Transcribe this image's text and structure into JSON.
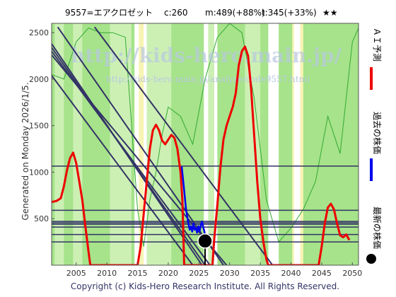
{
  "header": {
    "code_name": "9557=エアクロゼット",
    "current": "c:260",
    "max": "m:489(+88%)",
    "target": "t:345(+33%)",
    "stars": "★★"
  },
  "side_label": "Generated on Monday 2026/1/5.",
  "copyright": "Copyright (c) Kids-Hero Research Institute. All Rights Reserved.",
  "watermark": {
    "url": "http://kids-hero.main.jp/",
    "url_small": "http://kids-hero.main.jp/analyze/code9557.html"
  },
  "legend": {
    "ai": "ＡＩ予測",
    "past": "過去の株価",
    "latest": "最新の株価"
  },
  "colors": {
    "background_green": "#a6e38a",
    "light_green": "#ccf0b4",
    "yellow": "#f7f4b4",
    "white_band": "#ffffff",
    "ai_red": "#ee0000",
    "price_blue": "#0000ee",
    "trend_navy": "#333366",
    "latest_dot": "#000000"
  },
  "chart_data": {
    "type": "line",
    "xlim": [
      2001,
      2051
    ],
    "ylim": [
      0,
      2600
    ],
    "x_ticks": [
      2005,
      2010,
      2015,
      2020,
      2025,
      2030,
      2035,
      2040,
      2045,
      2050
    ],
    "y_ticks": [
      500,
      1000,
      1500,
      2000,
      2500
    ],
    "series": [
      {
        "key": "ai_forecast",
        "x": [
          2001,
          2001.8,
          2002.5,
          2003,
          2003.5,
          2004,
          2004.5,
          2005,
          2005.5,
          2006,
          2006.5,
          2007,
          2007.3,
          2015,
          2015.5,
          2016,
          2016.5,
          2017,
          2017.5,
          2018,
          2018.5,
          2019,
          2019.5,
          2020,
          2020.5,
          2021,
          2021.5,
          2022,
          2022.3,
          2022.6,
          2027.2,
          2027.5,
          2028,
          2028.5,
          2029,
          2029.5,
          2030,
          2030.5,
          2031,
          2031.5,
          2032,
          2032.5,
          2033,
          2033.5,
          2034,
          2034.5,
          2035,
          2035.5,
          2036,
          2036.3,
          2044.5,
          2045,
          2045.5,
          2046,
          2046.5,
          2047,
          2047.5,
          2048,
          2048.5,
          2049,
          2049.5
        ],
        "y": [
          680,
          690,
          720,
          850,
          1020,
          1150,
          1210,
          1100,
          900,
          700,
          420,
          150,
          0,
          0,
          200,
          550,
          900,
          1250,
          1450,
          1510,
          1450,
          1340,
          1300,
          1350,
          1400,
          1370,
          1250,
          1000,
          700,
          0,
          0,
          280,
          650,
          1050,
          1350,
          1500,
          1600,
          1700,
          1850,
          2150,
          2300,
          2350,
          2250,
          1900,
          1400,
          900,
          500,
          250,
          60,
          0,
          0,
          200,
          450,
          620,
          660,
          600,
          450,
          320,
          300,
          330,
          270
        ]
      },
      {
        "key": "past_price",
        "x": [
          2022.2,
          2022.6,
          2022.9,
          2023.1,
          2023.3,
          2023.5,
          2023.7,
          2023.9,
          2024.1,
          2024.3,
          2024.5,
          2024.7,
          2024.9,
          2025.1,
          2025.3,
          2025.5,
          2025.7,
          2025.9,
          2026.1
        ],
        "y": [
          1060,
          800,
          600,
          520,
          440,
          380,
          420,
          360,
          450,
          380,
          400,
          350,
          420,
          360,
          430,
          470,
          410,
          360,
          260
        ]
      }
    ],
    "latest": {
      "x": 2026.0,
      "y": 260
    },
    "horizontal_lines": [
      1065,
      590,
      470,
      455,
      440,
      410,
      330,
      250
    ],
    "trend_lines": [
      {
        "x": [
          2002,
          2029
        ],
        "y": [
          2560,
          0
        ]
      },
      {
        "x": [
          2001,
          2025.5
        ],
        "y": [
          2380,
          0
        ]
      },
      {
        "x": [
          2001,
          2026
        ],
        "y": [
          2340,
          0
        ]
      },
      {
        "x": [
          2001,
          2026.8
        ],
        "y": [
          2300,
          0
        ]
      },
      {
        "x": [
          2001,
          2029.5
        ],
        "y": [
          2260,
          0
        ]
      },
      {
        "x": [
          2008,
          2037
        ],
        "y": [
          2560,
          0
        ]
      },
      {
        "x": [
          2001,
          2024
        ],
        "y": [
          2040,
          0
        ]
      }
    ],
    "bands": [
      {
        "x": [
          2001,
          2051
        ],
        "kind": "background_green"
      },
      {
        "x": [
          2001.5,
          2003
        ],
        "kind": "light_green"
      },
      {
        "x": [
          2004.5,
          2006
        ],
        "kind": "light_green"
      },
      {
        "x": [
          2010.5,
          2014
        ],
        "kind": "light_green"
      },
      {
        "x": [
          2014.5,
          2016.5
        ],
        "kind": "white_band"
      },
      {
        "x": [
          2015.2,
          2016
        ],
        "kind": "yellow"
      },
      {
        "x": [
          2016.5,
          2020.5
        ],
        "kind": "light_green"
      },
      {
        "x": [
          2025.8,
          2028
        ],
        "kind": "white_band"
      },
      {
        "x": [
          2026.5,
          2027.5
        ],
        "kind": "light_green"
      },
      {
        "x": [
          2032.5,
          2035
        ],
        "kind": "light_green"
      },
      {
        "x": [
          2036.3,
          2038
        ],
        "kind": "white_band"
      },
      {
        "x": [
          2040.2,
          2042
        ],
        "kind": "yellow"
      },
      {
        "x": [
          2040.5,
          2041.5
        ],
        "kind": "white_band"
      }
    ],
    "thin_green_profile": {
      "x": [
        2001,
        2003,
        2005,
        2007,
        2009,
        2011,
        2013,
        2015,
        2016,
        2017,
        2018,
        2019,
        2020,
        2022,
        2024,
        2026,
        2028,
        2030,
        2032,
        2034,
        2036,
        2038,
        2040,
        2042,
        2044,
        2046,
        2048,
        2050,
        2051
      ],
      "y": [
        2050,
        2000,
        2400,
        2550,
        2500,
        2500,
        2450,
        600,
        200,
        700,
        1000,
        1400,
        1700,
        1600,
        1300,
        2000,
        2450,
        2600,
        2500,
        1800,
        700,
        250,
        400,
        600,
        900,
        1600,
        1200,
        2400,
        2550
      ]
    }
  }
}
